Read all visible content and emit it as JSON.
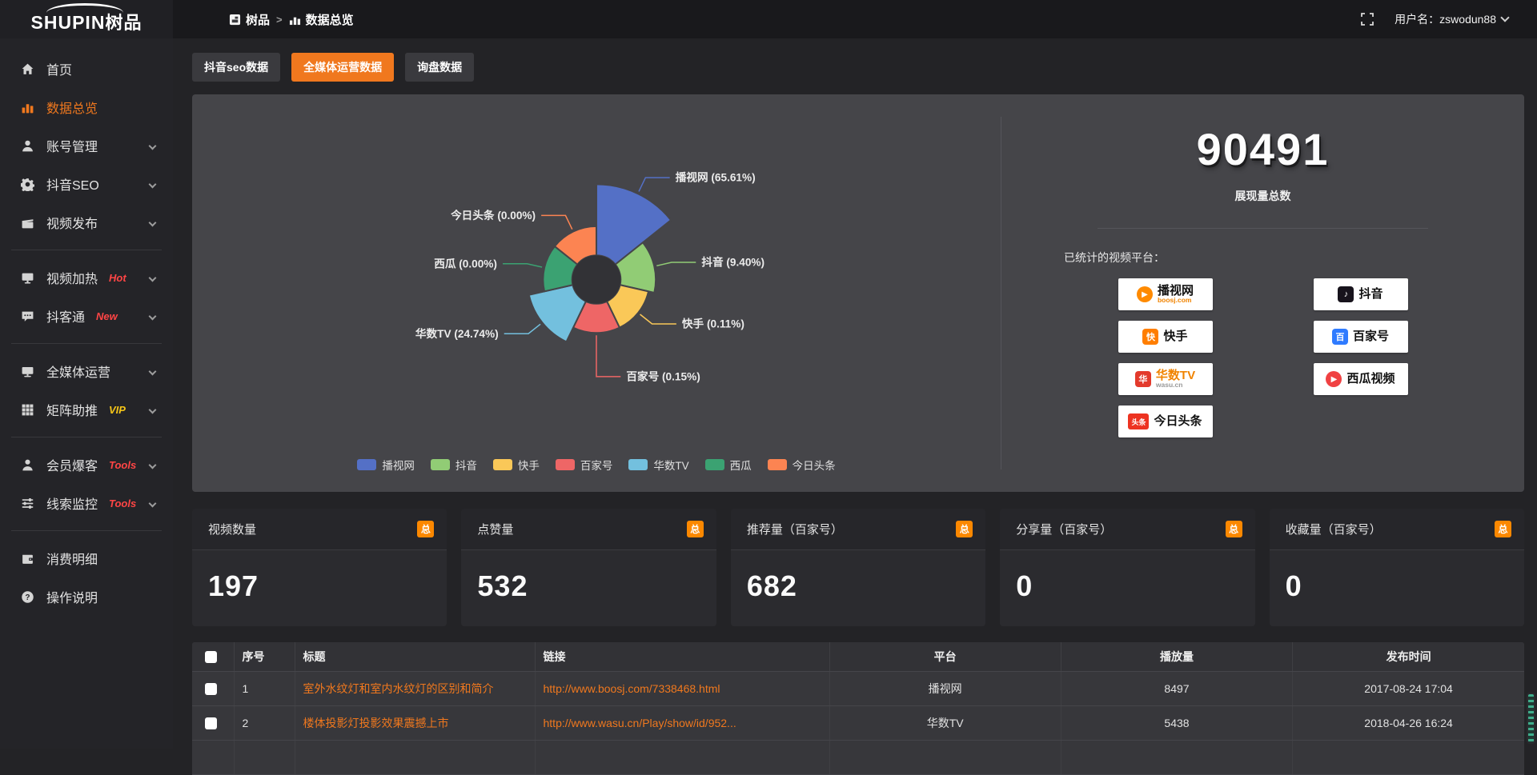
{
  "topbar": {
    "breadcrumb_root": "树品",
    "breadcrumb_sep": ">",
    "breadcrumb_current": "数据总览",
    "username": "用户名：zswodun88"
  },
  "logo": {
    "text_en": "SHUPIN",
    "text_cn": "树品"
  },
  "sidebar": {
    "items": [
      {
        "label": "首页",
        "icon": "home-icon"
      },
      {
        "label": "数据总览",
        "icon": "bar-chart-icon",
        "active": true
      },
      {
        "label": "账号管理",
        "icon": "user-icon",
        "expandable": true
      },
      {
        "label": "抖音SEO",
        "icon": "gear-icon",
        "expandable": true
      },
      {
        "label": "视频发布",
        "icon": "video-publish-icon",
        "expandable": true
      },
      {
        "divider": true
      },
      {
        "label": "视频加热",
        "icon": "monitor-heat-icon",
        "badge": "Hot",
        "badge_color": "#ff4545",
        "expandable": true
      },
      {
        "label": "抖客通",
        "icon": "chat-icon",
        "badge": "New",
        "badge_color": "#ff4545",
        "expandable": true
      },
      {
        "divider": true
      },
      {
        "label": "全媒体运营",
        "icon": "media-monitor-icon",
        "expandable": true
      },
      {
        "label": "矩阵助推",
        "icon": "grid-icon",
        "badge": "VIP",
        "badge_color": "#f5c518",
        "expandable": true
      },
      {
        "divider": true
      },
      {
        "label": "会员爆客",
        "icon": "member-icon",
        "badge": "Tools",
        "badge_color": "#ff4545",
        "expandable": true
      },
      {
        "label": "线索监控",
        "icon": "sliders-icon",
        "badge": "Tools",
        "badge_color": "#ff4545",
        "expandable": true
      },
      {
        "divider": true
      },
      {
        "label": "消费明细",
        "icon": "wallet-icon"
      },
      {
        "label": "操作说明",
        "icon": "help-icon"
      }
    ]
  },
  "tabs": [
    {
      "label": "抖音seo数据",
      "active": false
    },
    {
      "label": "全媒体运营数据",
      "active": true
    },
    {
      "label": "询盘数据",
      "active": false
    }
  ],
  "chart_data": {
    "type": "pie",
    "subtype": "nightingale-rose",
    "labels": [
      "播视网",
      "抖音",
      "快手",
      "百家号",
      "华数TV",
      "西瓜",
      "今日头条"
    ],
    "values": [
      65.61,
      9.4,
      0.11,
      0.15,
      24.74,
      0.0,
      0.0
    ],
    "pct_labels": [
      "65.61",
      "9.40",
      "0.11",
      "0.15",
      "24.74",
      "0.00",
      "0.00"
    ],
    "colors": [
      "#5470c6",
      "#91cc75",
      "#fac858",
      "#ee6666",
      "#73c0de",
      "#3ba272",
      "#fc8452"
    ],
    "label_format": "{name} ({pct}%)",
    "legend_position": "bottom",
    "donut_hole": true
  },
  "summary": {
    "total": "90491",
    "total_label": "展现量总数",
    "platforms_label": "已统计的视频平台：",
    "platforms": [
      {
        "name": "播视网",
        "sub": "boosj.com",
        "sub_color": "#f08300",
        "icon": "boosj-logo-icon",
        "icon_color": "#ff8a00",
        "glyph": "▶",
        "shape": "circle"
      },
      {
        "name": "抖音",
        "sub": "",
        "icon": "douyin-logo-icon",
        "icon_color": "#17131c",
        "glyph": "♪",
        "shape": "square"
      },
      {
        "name": "快手",
        "sub": "",
        "icon": "kuaishou-logo-icon",
        "icon_color": "#ff7e00",
        "glyph": "快",
        "shape": "square"
      },
      {
        "name": "百家号",
        "sub": "",
        "icon": "baijiahao-logo-icon",
        "icon_color": "#2f7bff",
        "glyph": "百",
        "shape": "square"
      },
      {
        "name": "华数TV",
        "name_color": "#f08300",
        "sub": "wasu.cn",
        "sub_color": "#999999",
        "icon": "wasu-logo-icon",
        "icon_color": "#e33a2c",
        "glyph": "华",
        "shape": "square"
      },
      {
        "name": "西瓜视频",
        "sub": "",
        "icon": "xigua-logo-icon",
        "icon_color": "#f04142",
        "glyph": "▶",
        "shape": "circle"
      },
      {
        "name": "今日头条",
        "sub": "",
        "icon": "toutiao-logo-icon",
        "icon_color": "#ed3321",
        "glyph": "头条",
        "shape": "wide"
      }
    ]
  },
  "stat_cards": [
    {
      "title": "视频数量",
      "badge": "总",
      "value": "197"
    },
    {
      "title": "点赞量",
      "badge": "总",
      "value": "532"
    },
    {
      "title": "推荐量（百家号）",
      "badge": "总",
      "value": "682"
    },
    {
      "title": "分享量（百家号）",
      "badge": "总",
      "value": "0"
    },
    {
      "title": "收藏量（百家号）",
      "badge": "总",
      "value": "0"
    }
  ],
  "table": {
    "headers": [
      "序号",
      "标题",
      "链接",
      "平台",
      "播放量",
      "发布时间"
    ],
    "rows": [
      {
        "no": "1",
        "title": "室外水纹灯和室内水纹灯的区别和简介",
        "link": "http://www.boosj.com/7338468.html",
        "platform": "播视网",
        "views": "8497",
        "time": "2017-08-24 17:04"
      },
      {
        "no": "2",
        "title": "楼体投影灯投影效果震撼上市",
        "link": "http://www.wasu.cn/Play/show/id/952...",
        "platform": "华数TV",
        "views": "5438",
        "time": "2018-04-26 16:24"
      }
    ]
  },
  "colors": {
    "accent_orange": "#f0781e",
    "badge_orange": "#fc8800",
    "hot_red": "#ff4545",
    "vip_gold": "#f5c518",
    "panel_bg": "#454549",
    "page_bg": "#232326"
  }
}
